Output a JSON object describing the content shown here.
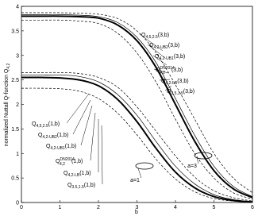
{
  "chart_data": {
    "type": "line",
    "xlabel": "b",
    "ylabel": {
      "text": "normalized Nuttall Q-function Q",
      "sub": "4,2"
    },
    "x": [
      0,
      0.5,
      1,
      1.5,
      2,
      2.5,
      3,
      3.5,
      4,
      4.5,
      5,
      5.5,
      6
    ],
    "series": [
      {
        "color": "#000000",
        "style": "bold",
        "values": [
          3.8,
          3.8,
          3.8,
          3.79,
          3.76,
          3.62,
          3.3,
          2.75,
          2.0,
          1.25,
          0.65,
          0.28,
          0.1
        ]
      },
      {
        "color": "#000000",
        "style": "thin",
        "values": [
          3.83,
          3.83,
          3.83,
          3.82,
          3.79,
          3.67,
          3.37,
          2.85,
          2.12,
          1.37,
          0.74,
          0.33,
          0.12
        ]
      },
      {
        "color": "#000000",
        "style": "dashed",
        "values": [
          3.87,
          3.87,
          3.87,
          3.86,
          3.84,
          3.75,
          3.5,
          3.05,
          2.4,
          1.7,
          1.0,
          0.5,
          0.2
        ]
      },
      {
        "color": "#000000",
        "style": "dashed",
        "values": [
          3.72,
          3.72,
          3.72,
          3.7,
          3.65,
          3.45,
          3.05,
          2.45,
          1.7,
          1.0,
          0.5,
          0.2,
          0.07
        ]
      },
      {
        "color": "#000000",
        "style": "bold",
        "values": [
          2.55,
          2.55,
          2.54,
          2.5,
          2.38,
          2.1,
          1.65,
          1.1,
          0.62,
          0.3,
          0.12,
          0.04,
          0.01
        ]
      },
      {
        "color": "#000000",
        "style": "thin",
        "values": [
          2.6,
          2.6,
          2.6,
          2.57,
          2.46,
          2.2,
          1.78,
          1.24,
          0.74,
          0.38,
          0.16,
          0.06,
          0.02
        ]
      },
      {
        "color": "#000000",
        "style": "dashed",
        "values": [
          2.65,
          2.65,
          2.65,
          2.63,
          2.55,
          2.35,
          1.95,
          1.45,
          0.95,
          0.52,
          0.24,
          0.1,
          0.03
        ]
      },
      {
        "color": "#000000",
        "style": "dashed",
        "values": [
          2.33,
          2.33,
          2.32,
          2.27,
          2.12,
          1.82,
          1.38,
          0.88,
          0.48,
          0.22,
          0.08,
          0.03,
          0.01
        ]
      }
    ],
    "xlim": [
      0,
      6
    ],
    "xticks": [
      0,
      1,
      2,
      3,
      4,
      5,
      6
    ],
    "ylim": [
      0,
      4
    ],
    "yticks": [
      0,
      0.5,
      1,
      1.5,
      2,
      2.5,
      3,
      3.5,
      4
    ],
    "annotations": [
      {
        "main": "Q",
        "sub": "4,5,2.5",
        "tail": "(3,b)"
      },
      {
        "main": "Q",
        "sub": "4,2-UB2",
        "tail": "(3,b)"
      },
      {
        "main": "Q",
        "sub": "4,2-UB1",
        "tail": "(3,b)"
      },
      {
        "main": "Q",
        "sup": "DN2014",
        "sub": "4,2",
        "tail": "(3,b)"
      },
      {
        "main": "Q",
        "sub": "4,2-LB",
        "tail": "(3,b)"
      },
      {
        "main": "Q",
        "sub": "3.5,1.5",
        "tail": "(3,b)"
      },
      {
        "main": "Q",
        "sub": "4,5,2.5",
        "tail": "(1,b)"
      },
      {
        "main": "Q",
        "sub": "4,2-UB2",
        "tail": "(1,b)"
      },
      {
        "main": "Q",
        "sub": "4,2-UB1",
        "tail": "(1,b)"
      },
      {
        "main": "Q",
        "sup": "DN2014",
        "sub": "4,2",
        "tail": "(1,b)"
      },
      {
        "main": "Q",
        "sub": "4,2-LB",
        "tail": "(1,b)"
      },
      {
        "main": "Q",
        "sub": "3.5,1.5",
        "tail": "(1,b)"
      }
    ],
    "group_labels": [
      "a=1",
      "a=3"
    ]
  }
}
